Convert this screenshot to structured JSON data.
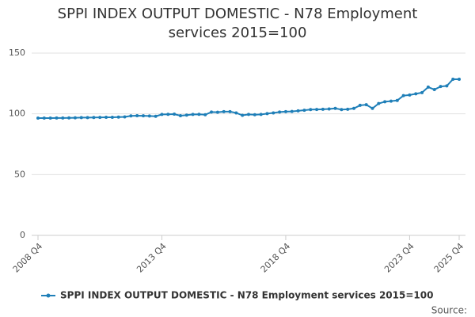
{
  "chart_data": {
    "type": "line",
    "title": "SPPI INDEX OUTPUT DOMESTIC - N78 Employment services 2015=100",
    "categories": [
      "2008 Q4",
      null,
      null,
      null,
      null,
      null,
      null,
      null,
      null,
      null,
      null,
      null,
      null,
      null,
      null,
      null,
      null,
      null,
      null,
      null,
      "2013 Q4",
      null,
      null,
      null,
      null,
      null,
      null,
      null,
      null,
      null,
      null,
      null,
      null,
      null,
      null,
      null,
      null,
      null,
      null,
      null,
      "2018 Q4",
      null,
      null,
      null,
      null,
      null,
      null,
      null,
      null,
      null,
      null,
      null,
      null,
      null,
      null,
      null,
      null,
      null,
      null,
      null,
      "2023 Q4",
      null,
      null,
      null,
      null,
      null,
      null,
      null,
      "2025 Q4"
    ],
    "series": [
      {
        "name": "SPPI INDEX OUTPUT DOMESTIC - N78 Employment services 2015=100",
        "color": "#1f7fb8",
        "values": [
          96.5,
          96.5,
          96.5,
          96.6,
          96.6,
          96.7,
          96.8,
          96.9,
          96.9,
          97.0,
          97.1,
          97.2,
          97.2,
          97.3,
          97.5,
          98.3,
          98.5,
          98.4,
          98.2,
          98.0,
          99.5,
          99.6,
          99.8,
          98.5,
          99.0,
          99.5,
          99.6,
          99.3,
          101.5,
          101.3,
          101.8,
          101.8,
          100.8,
          98.8,
          99.5,
          99.3,
          99.5,
          100.2,
          100.8,
          101.5,
          101.8,
          102.0,
          102.5,
          103.0,
          103.5,
          103.6,
          103.8,
          104.0,
          104.5,
          103.5,
          103.8,
          104.5,
          107.0,
          107.5,
          104.5,
          108.5,
          110.0,
          110.5,
          111.0,
          115.0,
          115.5,
          116.5,
          117.5,
          122.0,
          120.0,
          122.5,
          123.0,
          128.5,
          128.5
        ]
      }
    ],
    "ylim": [
      0,
      150
    ],
    "yticks": [
      0,
      50,
      100,
      150
    ],
    "grid": true,
    "source": "Source:"
  }
}
